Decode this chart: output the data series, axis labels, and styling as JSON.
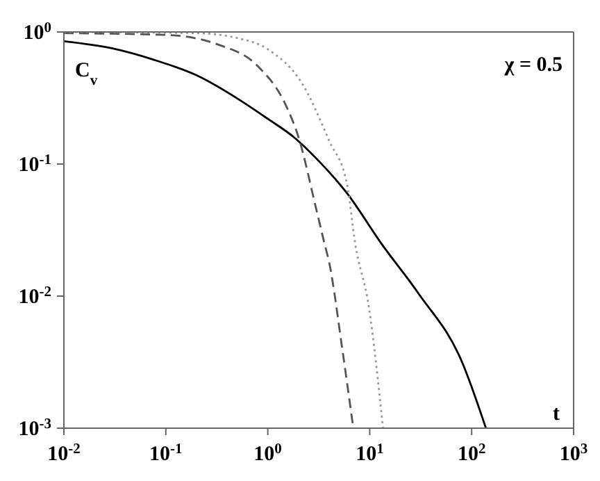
{
  "chart_data": {
    "type": "line",
    "xlabel": "t",
    "ylabel": "C$_{v}$",
    "annotations": [
      "χ = 0.5"
    ],
    "log": "xy",
    "marker": "none",
    "xlim": [
      0.01,
      1000
    ],
    "ylim": [
      0.001,
      1
    ],
    "xticks": [
      {
        "value": 0.01,
        "label": "10$^{-2}$"
      },
      {
        "value": 0.1,
        "label": "10$^{-1}$"
      },
      {
        "value": 1,
        "label": "10$^{0}$"
      },
      {
        "value": 10,
        "label": "10$^{1}$"
      },
      {
        "value": 100,
        "label": "10$^{2}$"
      },
      {
        "value": 1000,
        "label": "10$^{3}$"
      }
    ],
    "yticks": [
      {
        "value": 0.001,
        "label": "10$^{-3}$"
      },
      {
        "value": 0.01,
        "label": "10$^{-2}$"
      },
      {
        "value": 0.1,
        "label": "10$^{-1}$"
      },
      {
        "value": 1,
        "label": "10$^{0}$"
      }
    ],
    "series": [
      {
        "color": "#000000",
        "line_style": "solid",
        "x": [
          0.01,
          0.03,
          0.074,
          0.2,
          0.55,
          1.0,
          1.8,
          3,
          6,
          13,
          30,
          80,
          138
        ],
        "values": [
          0.85,
          0.75,
          0.62,
          0.47,
          0.3,
          0.22,
          0.16,
          0.11,
          0.06,
          0.025,
          0.0105,
          0.0032,
          0.001
        ]
      },
      {
        "color": "#555555",
        "line_style": "dashed",
        "x": [
          0.01,
          0.1,
          0.33,
          0.8,
          1.5,
          2.0,
          3.0,
          3.6,
          4.0,
          5.4,
          6.9
        ],
        "values": [
          0.98,
          0.95,
          0.8,
          0.55,
          0.28,
          0.16,
          0.045,
          0.025,
          0.018,
          0.0039,
          0.001
        ]
      },
      {
        "color": "#999999",
        "line_style": "dotted",
        "x": [
          0.01,
          0.2,
          0.5,
          1.0,
          2.2,
          4,
          6,
          7.2,
          9.8,
          13.5
        ],
        "values": [
          1,
          0.98,
          0.9,
          0.74,
          0.4,
          0.15,
          0.07,
          0.025,
          0.0083,
          0.001
        ]
      }
    ]
  }
}
